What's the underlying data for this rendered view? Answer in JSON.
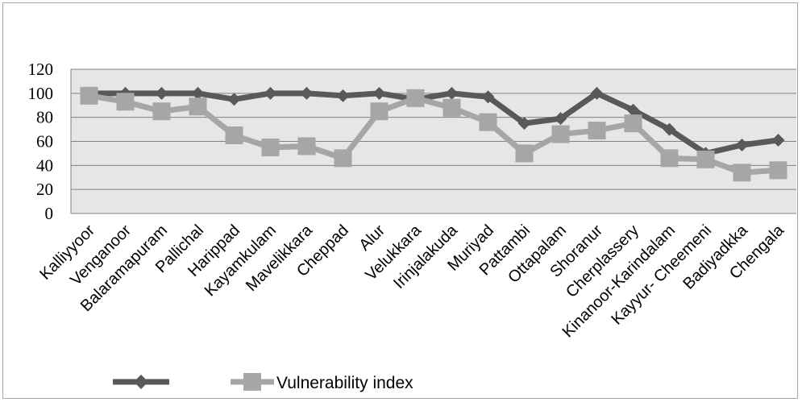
{
  "chart_data": {
    "type": "line",
    "categories": [
      "Kalliyyoor",
      "Venganoor",
      "Balaramapuram",
      "Pallichal",
      "Harippad",
      "Kayamkulam",
      "Mavelikkara",
      "Cheppad",
      "Alur",
      "Velukkara",
      "Irinjalakuda",
      "Muriyad",
      "Pattambi",
      "Ottapalam",
      "Shoranur",
      "Cherplassery",
      "Kinanoor-Karindalam",
      "Kayyur- Cheemeni",
      "Badiyadkka",
      "Chengala"
    ],
    "series": [
      {
        "name": "",
        "color": "#595959",
        "marker": "diamond",
        "values": [
          100,
          100,
          100,
          100,
          95,
          100,
          100,
          98,
          100,
          95,
          100,
          97,
          75,
          79,
          100,
          86,
          70,
          50,
          57,
          61
        ]
      },
      {
        "name": "Vulnerability index",
        "color": "#a6a6a6",
        "marker": "square",
        "values": [
          98,
          93,
          85,
          89,
          65,
          55,
          56,
          46,
          85,
          96,
          88,
          76,
          50,
          66,
          69,
          75,
          46,
          45,
          34,
          36
        ]
      }
    ],
    "yticks": [
      0,
      20,
      40,
      60,
      80,
      100,
      120
    ],
    "ylim": [
      0,
      120
    ],
    "grid": true,
    "plot_background": "#e6e6e6",
    "legend_position": "bottom",
    "title": "",
    "xlabel": "",
    "ylabel": ""
  }
}
